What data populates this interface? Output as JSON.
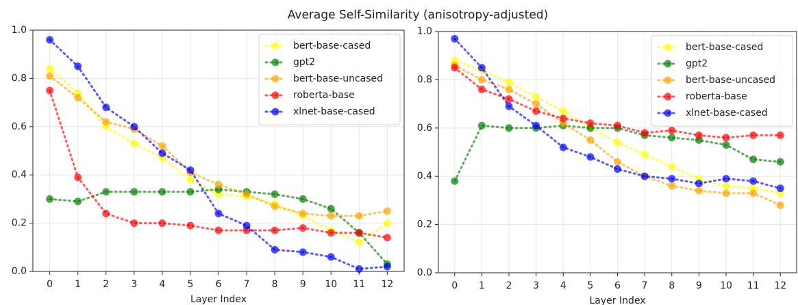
{
  "title": "Average Self-Similarity (anisotropy-adjusted)",
  "chart_data": [
    {
      "type": "line",
      "xlabel": "Layer Index",
      "x": [
        0,
        1,
        2,
        3,
        4,
        5,
        6,
        7,
        8,
        9,
        10,
        11,
        12
      ],
      "xlim": [
        -0.6,
        12.6
      ],
      "xticks": [
        0,
        1,
        2,
        3,
        4,
        5,
        6,
        7,
        8,
        9,
        10,
        11,
        12
      ],
      "ylim": [
        0,
        1
      ],
      "yticks": [
        {
          "value": 0,
          "label": "0.0"
        },
        0.2,
        0.4,
        0.6,
        0.8,
        {
          "value": 1,
          "label": "1.0"
        }
      ],
      "grid": true,
      "legend": "upper right",
      "series": [
        {
          "name": "bert-base-cased",
          "color": "#ffff00",
          "values": [
            0.84,
            0.74,
            0.6,
            0.53,
            0.47,
            0.38,
            0.32,
            0.31,
            0.28,
            0.23,
            0.17,
            0.12,
            0.2
          ]
        },
        {
          "name": "gpt2",
          "color": "#008000",
          "values": [
            0.3,
            0.29,
            0.33,
            0.33,
            0.33,
            0.33,
            0.34,
            0.33,
            0.32,
            0.3,
            0.26,
            0.16,
            0.03
          ]
        },
        {
          "name": "bert-base-uncased",
          "color": "#ffa500",
          "values": [
            0.81,
            0.72,
            0.62,
            0.59,
            0.52,
            0.41,
            0.36,
            0.32,
            0.27,
            0.24,
            0.23,
            0.23,
            0.25
          ]
        },
        {
          "name": "roberta-base",
          "color": "#ff0000",
          "values": [
            0.75,
            0.39,
            0.24,
            0.2,
            0.2,
            0.19,
            0.17,
            0.17,
            0.17,
            0.18,
            0.16,
            0.16,
            0.14
          ]
        },
        {
          "name": "xlnet-base-cased",
          "color": "#0000ff",
          "values": [
            0.96,
            0.85,
            0.68,
            0.6,
            0.49,
            0.42,
            0.24,
            0.19,
            0.09,
            0.08,
            0.06,
            0.01,
            0.02
          ]
        }
      ]
    },
    {
      "type": "line",
      "xlabel": "Layer Index",
      "x": [
        0,
        1,
        2,
        3,
        4,
        5,
        6,
        7,
        8,
        9,
        10,
        11,
        12
      ],
      "xlim": [
        -0.6,
        12.6
      ],
      "xticks": [
        0,
        1,
        2,
        3,
        4,
        5,
        6,
        7,
        8,
        9,
        10,
        11,
        12
      ],
      "ylim": [
        0,
        1
      ],
      "yticks": [
        {
          "value": 0,
          "label": "0.0"
        },
        0.2,
        0.4,
        0.6,
        0.8,
        {
          "value": 1,
          "label": "1.0"
        }
      ],
      "grid": true,
      "legend": "upper right",
      "series": [
        {
          "name": "bert-base-cased",
          "color": "#ffff00",
          "values": [
            0.88,
            0.84,
            0.79,
            0.73,
            0.67,
            0.6,
            0.54,
            0.49,
            0.44,
            0.39,
            0.36,
            0.35,
            0.33
          ]
        },
        {
          "name": "gpt2",
          "color": "#008000",
          "values": [
            0.38,
            0.61,
            0.6,
            0.6,
            0.61,
            0.6,
            0.6,
            0.57,
            0.56,
            0.55,
            0.53,
            0.47,
            0.46
          ]
        },
        {
          "name": "bert-base-uncased",
          "color": "#ffa500",
          "values": [
            0.86,
            0.8,
            0.76,
            0.7,
            0.62,
            0.55,
            0.46,
            0.4,
            0.36,
            0.34,
            0.33,
            0.33,
            0.28
          ]
        },
        {
          "name": "roberta-base",
          "color": "#ff0000",
          "values": [
            0.85,
            0.76,
            0.72,
            0.67,
            0.64,
            0.62,
            0.61,
            0.58,
            0.59,
            0.57,
            0.56,
            0.57,
            0.57
          ]
        },
        {
          "name": "xlnet-base-cased",
          "color": "#0000ff",
          "values": [
            0.97,
            0.85,
            0.69,
            0.61,
            0.52,
            0.48,
            0.43,
            0.4,
            0.39,
            0.37,
            0.39,
            0.38,
            0.35
          ]
        }
      ]
    }
  ]
}
